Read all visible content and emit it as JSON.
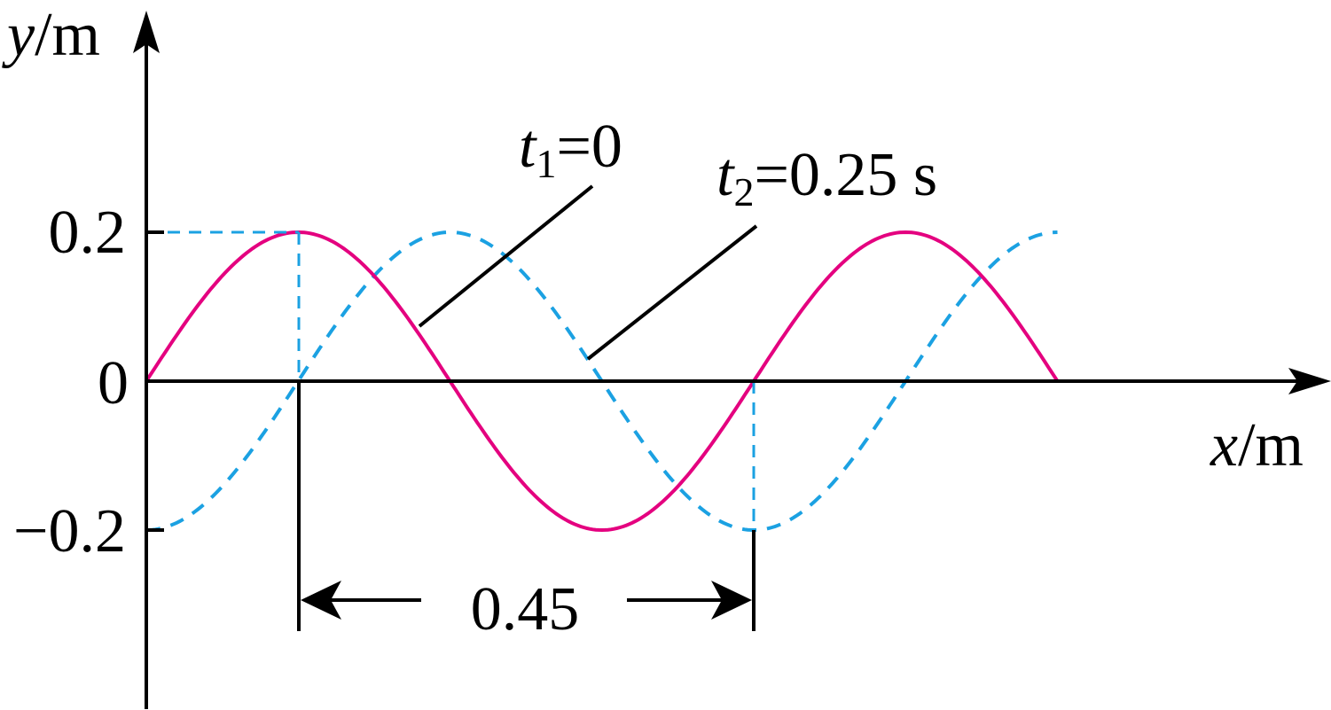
{
  "axes": {
    "y_var": "y",
    "y_unit": "/m",
    "x_var": "x",
    "x_unit": "/m",
    "y_ticks": [
      "0.2",
      "0",
      "−0.2"
    ]
  },
  "waves": {
    "amplitude": 0.2,
    "wavelength": 0.6,
    "x_end": 0.9,
    "t1": {
      "var": "t",
      "sub": "1",
      "value": "=0",
      "color": "#e4007f",
      "style": "solid",
      "phase": "sin"
    },
    "t2": {
      "var": "t",
      "sub": "2",
      "value": "=0.25 s",
      "color": "#1ba1e2",
      "style": "dashed",
      "phase": "-cos"
    }
  },
  "dimension": {
    "label": "0.45"
  }
}
